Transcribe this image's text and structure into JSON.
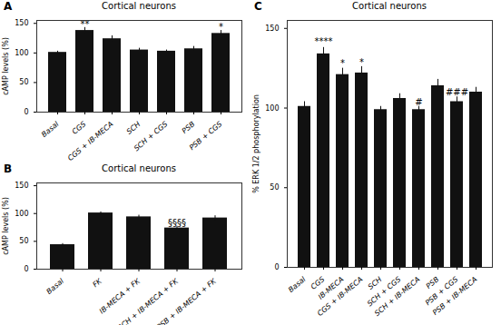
{
  "chart_data": [
    {
      "type": "bar",
      "panel_label": "A",
      "title": "Cortical neurons",
      "ylabel": "cAMP levels (%)",
      "categories": [
        "Basal",
        "CGS",
        "CGS + IB-MECA",
        "SCH",
        "SCH + CGS",
        "PSB",
        "PSB + CGS"
      ],
      "values": [
        101,
        138,
        124,
        105,
        103,
        107,
        133
      ],
      "errors": [
        2,
        5,
        5,
        3,
        2,
        4,
        5
      ],
      "color": "#111111",
      "ylim": [
        0,
        155
      ],
      "yticks": [
        0,
        50,
        100,
        150
      ],
      "annotations": [
        {
          "category": "CGS",
          "text": "**",
          "y": 144
        },
        {
          "category": "PSB + CGS",
          "text": "*",
          "y": 139
        }
      ]
    },
    {
      "type": "bar",
      "panel_label": "B",
      "title": "Cortical neurons",
      "ylabel": "cAMP levels (%)",
      "categories": [
        "Basal",
        "FK",
        "IB-MECA + FK",
        "SCH + IB-MECA + FK",
        "PSB + IB-MECA + FK"
      ],
      "values": [
        44,
        101,
        94,
        74,
        92
      ],
      "errors": [
        2,
        2,
        3,
        3,
        4
      ],
      "color": "#111111",
      "ylim": [
        0,
        155
      ],
      "yticks": [
        0,
        50,
        100,
        150
      ],
      "annotations": [
        {
          "category": "SCH + IB-MECA + FK",
          "text": "§§§§",
          "y": 78
        }
      ]
    },
    {
      "type": "bar",
      "panel_label": "C",
      "title": "Cortical neurons",
      "ylabel": "% ERK 1/2 phosphorylation",
      "categories": [
        "Basal",
        "CGS",
        "IB-MECA",
        "CGS + IB-MECA",
        "SCH",
        "SCH + CGS",
        "SCH + IB-MECA",
        "PSB",
        "PSB + CGS",
        "PSB + IB-MECA"
      ],
      "values": [
        101,
        134,
        121,
        122,
        99,
        106,
        99,
        114,
        104,
        110
      ],
      "errors": [
        3,
        4,
        4,
        4,
        2,
        3,
        2,
        4,
        3,
        3
      ],
      "color": "#111111",
      "ylim": [
        0,
        155
      ],
      "yticks": [
        0,
        50,
        100,
        150
      ],
      "annotations": [
        {
          "category": "CGS",
          "text": "****",
          "y": 140
        },
        {
          "category": "IB-MECA",
          "text": "*",
          "y": 126
        },
        {
          "category": "CGS + IB-MECA",
          "text": "*",
          "y": 127
        },
        {
          "category": "SCH + IB-MECA",
          "text": "#",
          "y": 102
        },
        {
          "category": "PSB + CGS",
          "text": "###",
          "y": 108
        }
      ]
    }
  ]
}
